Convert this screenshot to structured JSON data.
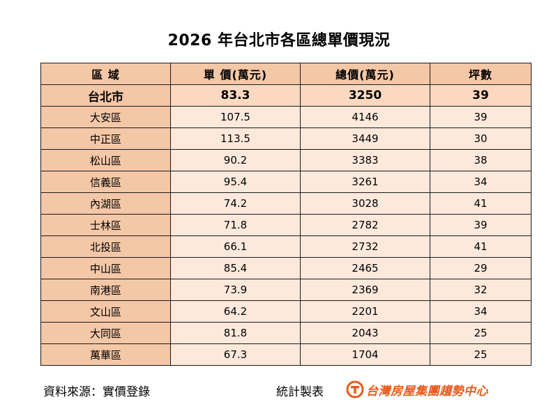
{
  "chart_data": {
    "type": "table",
    "title": "2026 年台北市各區總單價現況",
    "columns": [
      "區  域",
      "單  價(萬元)",
      "總價(萬元)",
      "坪數"
    ],
    "summary": {
      "district": "台北市",
      "unit_price": "83.3",
      "total_price": "3250",
      "area": "39"
    },
    "rows": [
      {
        "district": "大安區",
        "unit_price": "107.5",
        "total_price": "4146",
        "area": "39"
      },
      {
        "district": "中正區",
        "unit_price": "113.5",
        "total_price": "3449",
        "area": "30"
      },
      {
        "district": "松山區",
        "unit_price": "90.2",
        "total_price": "3383",
        "area": "38"
      },
      {
        "district": "信義區",
        "unit_price": "95.4",
        "total_price": "3261",
        "area": "34"
      },
      {
        "district": "內湖區",
        "unit_price": "74.2",
        "total_price": "3028",
        "area": "41"
      },
      {
        "district": "士林區",
        "unit_price": "71.8",
        "total_price": "2782",
        "area": "39"
      },
      {
        "district": "北投區",
        "unit_price": "66.1",
        "total_price": "2732",
        "area": "41"
      },
      {
        "district": "中山區",
        "unit_price": "85.4",
        "total_price": "2465",
        "area": "29"
      },
      {
        "district": "南港區",
        "unit_price": "73.9",
        "total_price": "2369",
        "area": "32"
      },
      {
        "district": "文山區",
        "unit_price": "64.2",
        "total_price": "2201",
        "area": "34"
      },
      {
        "district": "大同區",
        "unit_price": "81.8",
        "total_price": "2043",
        "area": "25"
      },
      {
        "district": "萬華區",
        "unit_price": "67.3",
        "total_price": "1704",
        "area": "25"
      }
    ]
  },
  "footer": {
    "source": "資料來源：實價登錄",
    "stat_label": "統計製表",
    "brand_name": "台灣房屋集團趨勢中心",
    "brand_icon": "taiwan-realty-logo-icon"
  },
  "colors": {
    "header_bg": "#f4c7a7",
    "summary_bg": "#fad9c0",
    "row_bg": "#fde9dc",
    "brand": "#e8591a"
  }
}
